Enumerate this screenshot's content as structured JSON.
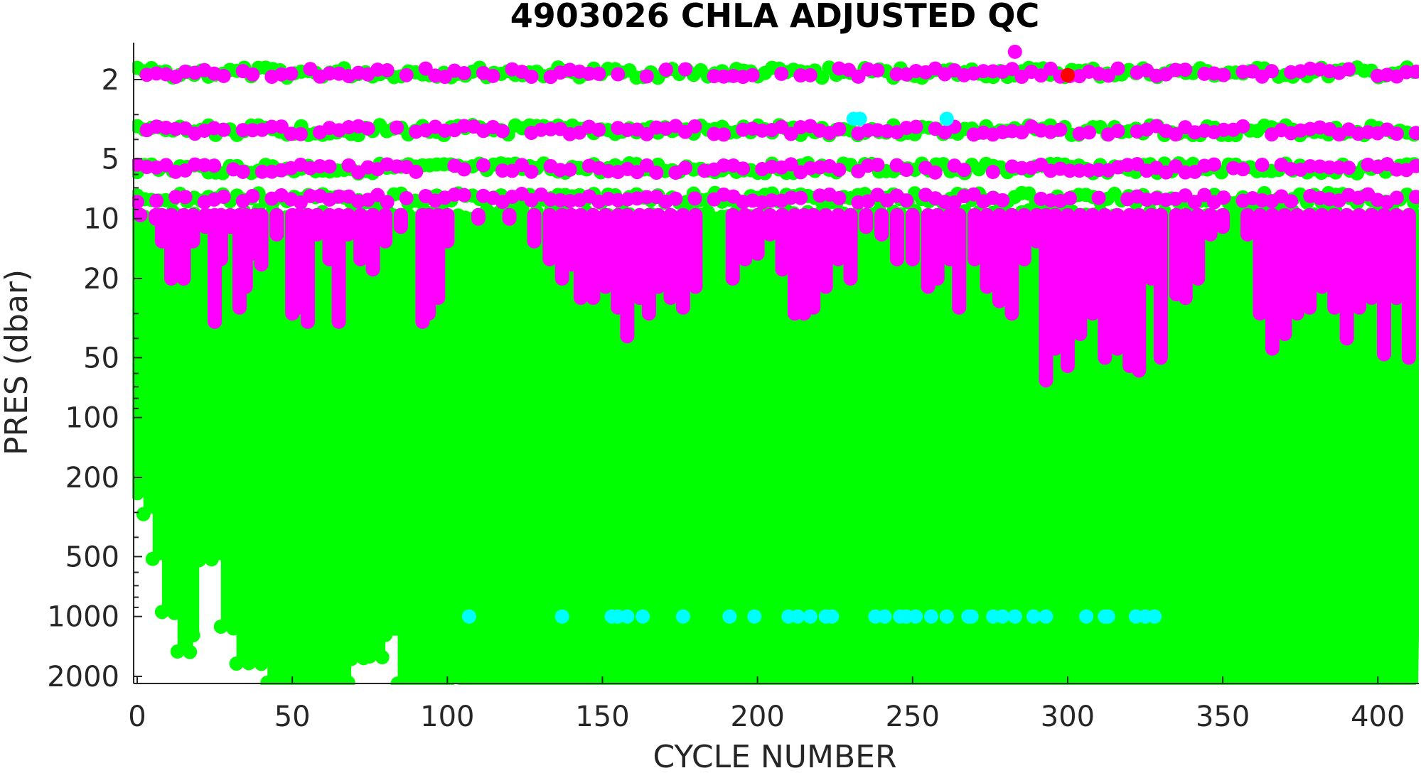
{
  "chart_data": {
    "type": "scatter",
    "title": "4903026  CHLA ADJUSTED QC",
    "xlabel": "CYCLE NUMBER",
    "ylabel": "PRES (dbar)",
    "xlim": [
      0,
      413
    ],
    "ylim": [
      1.5,
      2100
    ],
    "y_scale": "log",
    "y_direction": "reversed",
    "grid": false,
    "legend": "none",
    "x_ticks": [
      0,
      50,
      100,
      150,
      200,
      250,
      300,
      350,
      400
    ],
    "x_tick_labels": [
      "0",
      "50",
      "100",
      "150",
      "200",
      "250",
      "300",
      "350",
      "400"
    ],
    "y_ticks": [
      2,
      5,
      10,
      20,
      50,
      100,
      200,
      500,
      1000,
      2000
    ],
    "y_tick_labels": [
      "2",
      "5",
      "10",
      "20",
      "50",
      "100",
      "200",
      "500",
      "1000",
      "2000"
    ],
    "colors": {
      "qc_good": "#00ff00",
      "qc_adjusted": "#ff00ff",
      "qc_probably_bad": "#00ffff",
      "qc_bad": "#ff0000",
      "axis": "#262626"
    },
    "series": [
      {
        "color": "#00ff00",
        "points_description": "bulk profile",
        "surface_rows_pres": [
          1.85,
          3.6,
          5.6,
          7.9,
          9.6
        ],
        "column_max_pres": [
          [
            0,
            220
          ],
          [
            2,
            280
          ],
          [
            5,
            480
          ],
          [
            8,
            880
          ],
          [
            13,
            1400
          ],
          [
            18,
            1150
          ],
          [
            20,
            480
          ],
          [
            27,
            1050
          ],
          [
            32,
            1600
          ],
          [
            42,
            2000
          ],
          [
            56,
            2000
          ],
          [
            69,
            1500
          ],
          [
            75,
            1480
          ],
          [
            80,
            1150
          ],
          [
            84,
            2000
          ],
          [
            104,
            1900
          ],
          [
            106,
            2000
          ],
          [
            413,
            2000
          ]
        ]
      },
      {
        "color": "#ff00ff",
        "surface_rows_pres": [
          1.85,
          3.6,
          5.6,
          7.9
        ],
        "column_extents": [
          [
            1,
            9.6
          ],
          [
            6,
            10
          ],
          [
            8,
            13
          ],
          [
            11,
            20
          ],
          [
            15,
            20
          ],
          [
            18,
            13
          ],
          [
            22,
            11
          ],
          [
            25,
            33
          ],
          [
            27,
            16
          ],
          [
            30,
            11
          ],
          [
            33,
            28
          ],
          [
            35,
            22
          ],
          [
            38,
            15
          ],
          [
            40,
            17
          ],
          [
            45,
            12
          ],
          [
            50,
            30
          ],
          [
            52,
            28
          ],
          [
            55,
            33
          ],
          [
            58,
            12
          ],
          [
            62,
            16
          ],
          [
            65,
            33
          ],
          [
            68,
            12
          ],
          [
            72,
            16
          ],
          [
            76,
            18
          ],
          [
            80,
            13
          ],
          [
            85,
            11
          ],
          [
            92,
            33
          ],
          [
            94,
            30
          ],
          [
            97,
            25
          ],
          [
            100,
            13
          ],
          [
            110,
            10
          ],
          [
            120,
            10
          ],
          [
            128,
            13
          ],
          [
            133,
            16
          ],
          [
            137,
            20
          ],
          [
            140,
            17
          ],
          [
            143,
            25
          ],
          [
            147,
            25
          ],
          [
            151,
            22
          ],
          [
            155,
            28
          ],
          [
            158,
            39
          ],
          [
            162,
            25
          ],
          [
            165,
            30
          ],
          [
            168,
            22
          ],
          [
            172,
            25
          ],
          [
            176,
            28
          ],
          [
            180,
            22
          ],
          [
            192,
            20
          ],
          [
            196,
            16
          ],
          [
            200,
            15
          ],
          [
            204,
            12
          ],
          [
            208,
            18
          ],
          [
            212,
            30
          ],
          [
            215,
            30
          ],
          [
            218,
            28
          ],
          [
            222,
            22
          ],
          [
            226,
            16
          ],
          [
            230,
            20
          ],
          [
            235,
            11
          ],
          [
            240,
            12
          ],
          [
            245,
            16
          ],
          [
            250,
            16
          ],
          [
            255,
            22
          ],
          [
            258,
            20
          ],
          [
            262,
            16
          ],
          [
            265,
            28
          ],
          [
            270,
            16
          ],
          [
            274,
            22
          ],
          [
            278,
            26
          ],
          [
            282,
            30
          ],
          [
            286,
            16
          ],
          [
            290,
            13
          ],
          [
            293,
            65
          ],
          [
            296,
            45
          ],
          [
            300,
            55
          ],
          [
            304,
            38
          ],
          [
            308,
            30
          ],
          [
            312,
            50
          ],
          [
            316,
            45
          ],
          [
            320,
            55
          ],
          [
            323,
            58
          ],
          [
            327,
            20
          ],
          [
            330,
            50
          ],
          [
            335,
            24
          ],
          [
            338,
            25
          ],
          [
            342,
            20
          ],
          [
            346,
            12
          ],
          [
            350,
            11
          ],
          [
            358,
            12
          ],
          [
            362,
            30
          ],
          [
            366,
            45
          ],
          [
            370,
            38
          ],
          [
            374,
            30
          ],
          [
            378,
            28
          ],
          [
            382,
            22
          ],
          [
            386,
            28
          ],
          [
            390,
            40
          ],
          [
            394,
            28
          ],
          [
            398,
            25
          ],
          [
            402,
            48
          ],
          [
            406,
            25
          ],
          [
            410,
            50
          ]
        ],
        "outliers": [
          [
            283,
            1.45
          ]
        ]
      },
      {
        "color": "#00ffff",
        "points": [
          [
            107,
            1000
          ],
          [
            137,
            1000
          ],
          [
            153,
            1000
          ],
          [
            155,
            1000
          ],
          [
            158,
            1000
          ],
          [
            163,
            1000
          ],
          [
            176,
            1000
          ],
          [
            191,
            1000
          ],
          [
            199,
            1000
          ],
          [
            210,
            1000
          ],
          [
            213,
            1000
          ],
          [
            217,
            1000
          ],
          [
            222,
            1000
          ],
          [
            224,
            1000
          ],
          [
            238,
            1000
          ],
          [
            241,
            1000
          ],
          [
            246,
            1000
          ],
          [
            248,
            1000
          ],
          [
            251,
            1000
          ],
          [
            256,
            1000
          ],
          [
            261,
            1000
          ],
          [
            268,
            1000
          ],
          [
            269,
            1000
          ],
          [
            276,
            1000
          ],
          [
            279,
            1000
          ],
          [
            283,
            1000
          ],
          [
            289,
            1000
          ],
          [
            293,
            1000
          ],
          [
            306,
            1000
          ],
          [
            312,
            1000
          ],
          [
            313,
            1000
          ],
          [
            322,
            1000
          ],
          [
            325,
            1000
          ],
          [
            328,
            1000
          ],
          [
            231,
            3.15
          ],
          [
            233,
            3.15
          ],
          [
            261,
            3.15
          ]
        ]
      },
      {
        "color": "#ff0000",
        "points": [
          [
            300,
            1.9
          ]
        ]
      }
    ]
  }
}
